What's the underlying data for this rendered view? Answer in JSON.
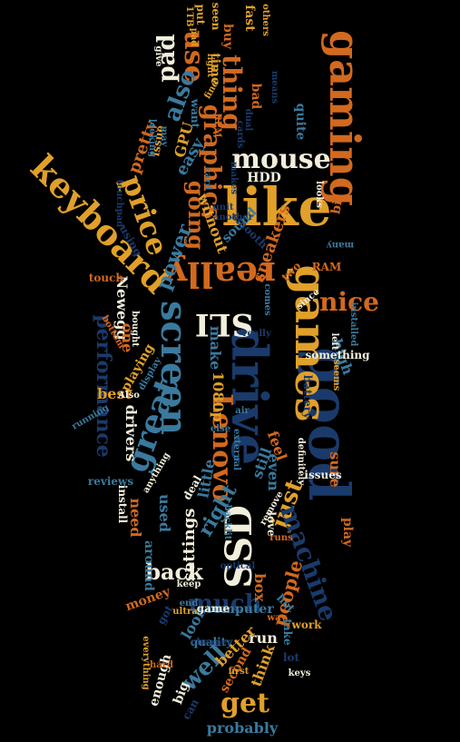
{
  "colors": {
    "background": "#000000",
    "orange": "#D2691E",
    "gold": "#E0A02A",
    "navy": "#1A3A6B",
    "teal": "#3A7A9E",
    "cream": "#F2EEDC"
  },
  "words": [
    {
      "text": "gaming",
      "color": "orange"
    },
    {
      "text": "like",
      "color": "gold"
    },
    {
      "text": "good",
      "color": "navy"
    },
    {
      "text": "drive",
      "color": "navy"
    },
    {
      "text": "games",
      "color": "gold"
    },
    {
      "text": "keyboard",
      "color": "gold"
    },
    {
      "text": "mouse",
      "color": "cream"
    },
    {
      "text": "screen",
      "color": "teal"
    },
    {
      "text": "really",
      "color": "orange"
    },
    {
      "text": "SSD",
      "color": "cream"
    },
    {
      "text": "get",
      "color": "gold"
    },
    {
      "text": "just",
      "color": "gold"
    },
    {
      "text": "great",
      "color": "teal"
    },
    {
      "text": "Lenovo",
      "color": "orange"
    },
    {
      "text": "machine",
      "color": "navy"
    },
    {
      "text": "SLI",
      "color": "cream"
    },
    {
      "text": "nice",
      "color": "orange"
    },
    {
      "text": "use",
      "color": "orange"
    },
    {
      "text": "thing",
      "color": "orange"
    },
    {
      "text": "graphics",
      "color": "orange"
    },
    {
      "text": "price",
      "color": "gold"
    },
    {
      "text": "also",
      "color": "teal"
    },
    {
      "text": "pad",
      "color": "cream"
    },
    {
      "text": "much",
      "color": "navy"
    },
    {
      "text": "back",
      "color": "cream"
    },
    {
      "text": "well",
      "color": "teal"
    },
    {
      "text": "going",
      "color": "orange"
    },
    {
      "text": "power",
      "color": "teal"
    },
    {
      "text": "speakers",
      "color": "orange"
    },
    {
      "text": "performance",
      "color": "navy"
    },
    {
      "text": "Newegg",
      "color": "cream"
    },
    {
      "text": "right",
      "color": "teal"
    },
    {
      "text": "people",
      "color": "orange"
    },
    {
      "text": "settings",
      "color": "cream"
    },
    {
      "text": "pretty",
      "color": "orange"
    },
    {
      "text": "easy",
      "color": "teal"
    },
    {
      "text": "sure",
      "color": "orange"
    },
    {
      "text": "make",
      "color": "teal"
    },
    {
      "text": "one",
      "color": "orange"
    },
    {
      "text": "high",
      "color": "teal"
    },
    {
      "text": "best",
      "color": "gold"
    },
    {
      "text": "run",
      "color": "cream"
    },
    {
      "text": "box",
      "color": "orange"
    },
    {
      "text": "drivers",
      "color": "cream"
    },
    {
      "text": "even",
      "color": "teal"
    },
    {
      "text": "time",
      "color": "gold"
    },
    {
      "text": "bad",
      "color": "orange"
    },
    {
      "text": "HDD",
      "color": "cream"
    },
    {
      "text": "without",
      "color": "gold"
    },
    {
      "text": "still",
      "color": "teal"
    },
    {
      "text": "used",
      "color": "teal"
    },
    {
      "text": "little",
      "color": "teal"
    },
    {
      "text": "buy",
      "color": "orange"
    },
    {
      "text": "play",
      "color": "orange"
    },
    {
      "text": "1080p",
      "color": "gold"
    },
    {
      "text": "feel",
      "color": "orange"
    },
    {
      "text": "better",
      "color": "gold"
    },
    {
      "text": "need",
      "color": "orange"
    },
    {
      "text": "think",
      "color": "gold"
    },
    {
      "text": "look",
      "color": "teal"
    },
    {
      "text": "work",
      "color": "gold"
    },
    {
      "text": "issues",
      "color": "cream"
    },
    {
      "text": "installed",
      "color": "teal"
    },
    {
      "text": "GPU",
      "color": "gold"
    },
    {
      "text": "sound",
      "color": "teal"
    },
    {
      "text": "quite",
      "color": "teal"
    },
    {
      "text": "RAM",
      "color": "orange"
    },
    {
      "text": "bit",
      "color": "orange"
    },
    {
      "text": "two",
      "color": "orange"
    },
    {
      "text": "install",
      "color": "cream"
    },
    {
      "text": "playing",
      "color": "gold"
    },
    {
      "text": "computer",
      "color": "teal"
    },
    {
      "text": "money",
      "color": "orange"
    },
    {
      "text": "around",
      "color": "teal"
    },
    {
      "text": "deal",
      "color": "cream"
    },
    {
      "text": "love",
      "color": "cream"
    },
    {
      "text": "fast",
      "color": "gold"
    },
    {
      "text": "seen",
      "color": "gold"
    },
    {
      "text": "put",
      "color": "gold"
    },
    {
      "text": "others",
      "color": "gold"
    },
    {
      "text": "1TB",
      "color": "gold"
    },
    {
      "text": "light",
      "color": "gold"
    },
    {
      "text": "RPM",
      "color": "orange"
    },
    {
      "text": "means",
      "color": "navy"
    },
    {
      "text": "want",
      "color": "teal"
    },
    {
      "text": "find",
      "color": "gold"
    },
    {
      "text": "issue",
      "color": "gold"
    },
    {
      "text": "looking",
      "color": "teal"
    },
    {
      "text": "may",
      "color": "teal"
    },
    {
      "text": "dual",
      "color": "navy"
    },
    {
      "text": "cards",
      "color": "navy"
    },
    {
      "text": "makes",
      "color": "navy"
    },
    {
      "text": "unit",
      "color": "navy"
    },
    {
      "text": "looks",
      "color": "cream"
    },
    {
      "text": "smooth",
      "color": "navy"
    },
    {
      "text": "another",
      "color": "navy"
    },
    {
      "text": "many",
      "color": "teal"
    },
    {
      "text": "card",
      "color": "teal"
    },
    {
      "text": "touchpad",
      "color": "navy"
    },
    {
      "text": "using",
      "color": "navy"
    },
    {
      "text": "touch",
      "color": "orange"
    },
    {
      "text": "since",
      "color": "cream"
    },
    {
      "text": "comes",
      "color": "teal"
    },
    {
      "text": "left",
      "color": "cream"
    },
    {
      "text": "really",
      "color": "navy"
    },
    {
      "text": "bottom",
      "color": "orange"
    },
    {
      "text": "bought",
      "color": "cream"
    },
    {
      "text": "display",
      "color": "teal"
    },
    {
      "text": "Also",
      "color": "cream"
    },
    {
      "text": "something",
      "color": "cream"
    },
    {
      "text": "seems",
      "color": "gold"
    },
    {
      "text": "battery",
      "color": "navy"
    },
    {
      "text": "running",
      "color": "teal"
    },
    {
      "text": "air",
      "color": "teal"
    },
    {
      "text": "else",
      "color": "teal"
    },
    {
      "text": "external",
      "color": "teal"
    },
    {
      "text": "definitely",
      "color": "cream"
    },
    {
      "text": "anything",
      "color": "cream"
    },
    {
      "text": "reviews",
      "color": "teal"
    },
    {
      "text": "remove",
      "color": "cream"
    },
    {
      "text": "backlit",
      "color": "teal"
    },
    {
      "text": "runs",
      "color": "orange"
    },
    {
      "text": "optical",
      "color": "navy"
    },
    {
      "text": "keep",
      "color": "cream"
    },
    {
      "text": "end",
      "color": "teal"
    },
    {
      "text": "game",
      "color": "cream"
    },
    {
      "text": "hot",
      "color": "teal"
    },
    {
      "text": "way",
      "color": "orange"
    },
    {
      "text": "take",
      "color": "teal"
    },
    {
      "text": "ultra",
      "color": "gold"
    },
    {
      "text": "quality",
      "color": "teal"
    },
    {
      "text": "second",
      "color": "orange"
    },
    {
      "text": "cheaper",
      "color": "navy"
    },
    {
      "text": "everything",
      "color": "gold"
    },
    {
      "text": "enough",
      "color": "cream"
    },
    {
      "text": "keys",
      "color": "cream"
    },
    {
      "text": "lot",
      "color": "navy"
    },
    {
      "text": "hard",
      "color": "orange"
    },
    {
      "text": "big",
      "color": "cream"
    },
    {
      "text": "probably",
      "color": "teal"
    },
    {
      "text": "got",
      "color": "navy"
    },
    {
      "text": "can",
      "color": "navy"
    },
    {
      "text": "first",
      "color": "gold"
    },
    {
      "text": "pad",
      "color": "gold"
    },
    {
      "text": "give",
      "color": "cream"
    }
  ]
}
